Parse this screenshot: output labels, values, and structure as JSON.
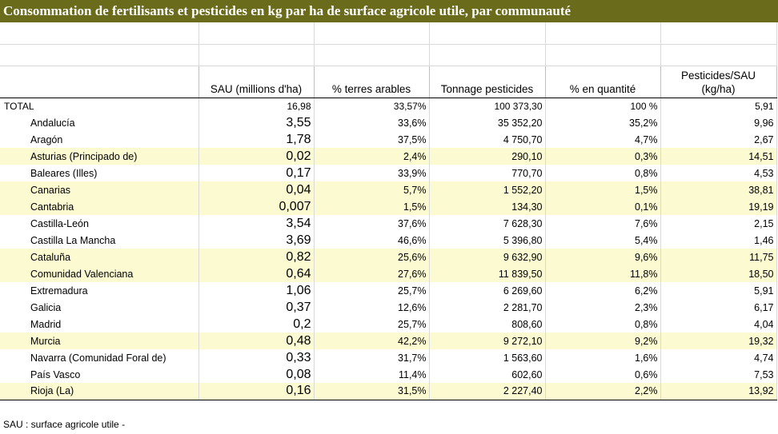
{
  "title": "Consommation de fertilisants et pesticides en kg par ha de surface agricole utile, par communauté",
  "headers": [
    "",
    "SAU (millions d'ha)",
    "% terres arables",
    "Tonnage pesticides",
    "% en quantité",
    "Pesticides/SAU (kg/ha)"
  ],
  "total": {
    "name": "TOTAL",
    "sau": "16,98",
    "terres": "33,57%",
    "tonnage": "100 373,30",
    "quantite": "100 %",
    "ratio": "5,91"
  },
  "rows": [
    {
      "name": "Andalucía",
      "sau": "3,55",
      "terres": "33,6%",
      "tonnage": "35 352,20",
      "quantite": "35,2%",
      "ratio": "9,96",
      "highlight": false
    },
    {
      "name": "Aragón",
      "sau": "1,78",
      "terres": "37,5%",
      "tonnage": "4 750,70",
      "quantite": "4,7%",
      "ratio": "2,67",
      "highlight": false
    },
    {
      "name": "Asturias (Principado de)",
      "sau": "0,02",
      "terres": "2,4%",
      "tonnage": "290,10",
      "quantite": "0,3%",
      "ratio": "14,51",
      "highlight": true
    },
    {
      "name": "Baleares (Illes)",
      "sau": "0,17",
      "terres": "33,9%",
      "tonnage": "770,70",
      "quantite": "0,8%",
      "ratio": "4,53",
      "highlight": false
    },
    {
      "name": "Canarias",
      "sau": "0,04",
      "terres": "5,7%",
      "tonnage": "1 552,20",
      "quantite": "1,5%",
      "ratio": "38,81",
      "highlight": true
    },
    {
      "name": "Cantabria",
      "sau": "0,007",
      "terres": "1,5%",
      "tonnage": "134,30",
      "quantite": "0,1%",
      "ratio": "19,19",
      "highlight": true
    },
    {
      "name": "Castilla-León",
      "sau": "3,54",
      "terres": "37,6%",
      "tonnage": "7 628,30",
      "quantite": "7,6%",
      "ratio": "2,15",
      "highlight": false
    },
    {
      "name": "Castilla La Mancha",
      "sau": "3,69",
      "terres": "46,6%",
      "tonnage": "5 396,80",
      "quantite": "5,4%",
      "ratio": "1,46",
      "highlight": false
    },
    {
      "name": "Cataluña",
      "sau": "0,82",
      "terres": "25,6%",
      "tonnage": "9 632,90",
      "quantite": "9,6%",
      "ratio": "11,75",
      "highlight": true
    },
    {
      "name": "Comunidad Valenciana",
      "sau": "0,64",
      "terres": "27,6%",
      "tonnage": "11 839,50",
      "quantite": "11,8%",
      "ratio": "18,50",
      "highlight": true
    },
    {
      "name": "Extremadura",
      "sau": "1,06",
      "terres": "25,7%",
      "tonnage": "6 269,60",
      "quantite": "6,2%",
      "ratio": "5,91",
      "highlight": false
    },
    {
      "name": "Galicia",
      "sau": "0,37",
      "terres": "12,6%",
      "tonnage": "2 281,70",
      "quantite": "2,3%",
      "ratio": "6,17",
      "highlight": false
    },
    {
      "name": "Madrid",
      "sau": "0,2",
      "terres": "25,7%",
      "tonnage": "808,60",
      "quantite": "0,8%",
      "ratio": "4,04",
      "highlight": false
    },
    {
      "name": "Murcia",
      "sau": "0,48",
      "terres": "42,2%",
      "tonnage": "9 272,10",
      "quantite": "9,2%",
      "ratio": "19,32",
      "highlight": true
    },
    {
      "name": "Navarra (Comunidad Foral de)",
      "sau": "0,33",
      "terres": "31,7%",
      "tonnage": "1 563,60",
      "quantite": "1,6%",
      "ratio": "4,74",
      "highlight": false
    },
    {
      "name": "País Vasco",
      "sau": "0,08",
      "terres": "11,4%",
      "tonnage": "602,60",
      "quantite": "0,6%",
      "ratio": "7,53",
      "highlight": false
    },
    {
      "name": "Rioja (La)",
      "sau": "0,16",
      "terres": "31,5%",
      "tonnage": "2 227,40",
      "quantite": "2,2%",
      "ratio": "13,92",
      "highlight": true
    }
  ],
  "footnote": "SAU : surface agricole utile -",
  "colors": {
    "title_bg": "#6b6b1c",
    "highlight": "#fcfad0"
  }
}
